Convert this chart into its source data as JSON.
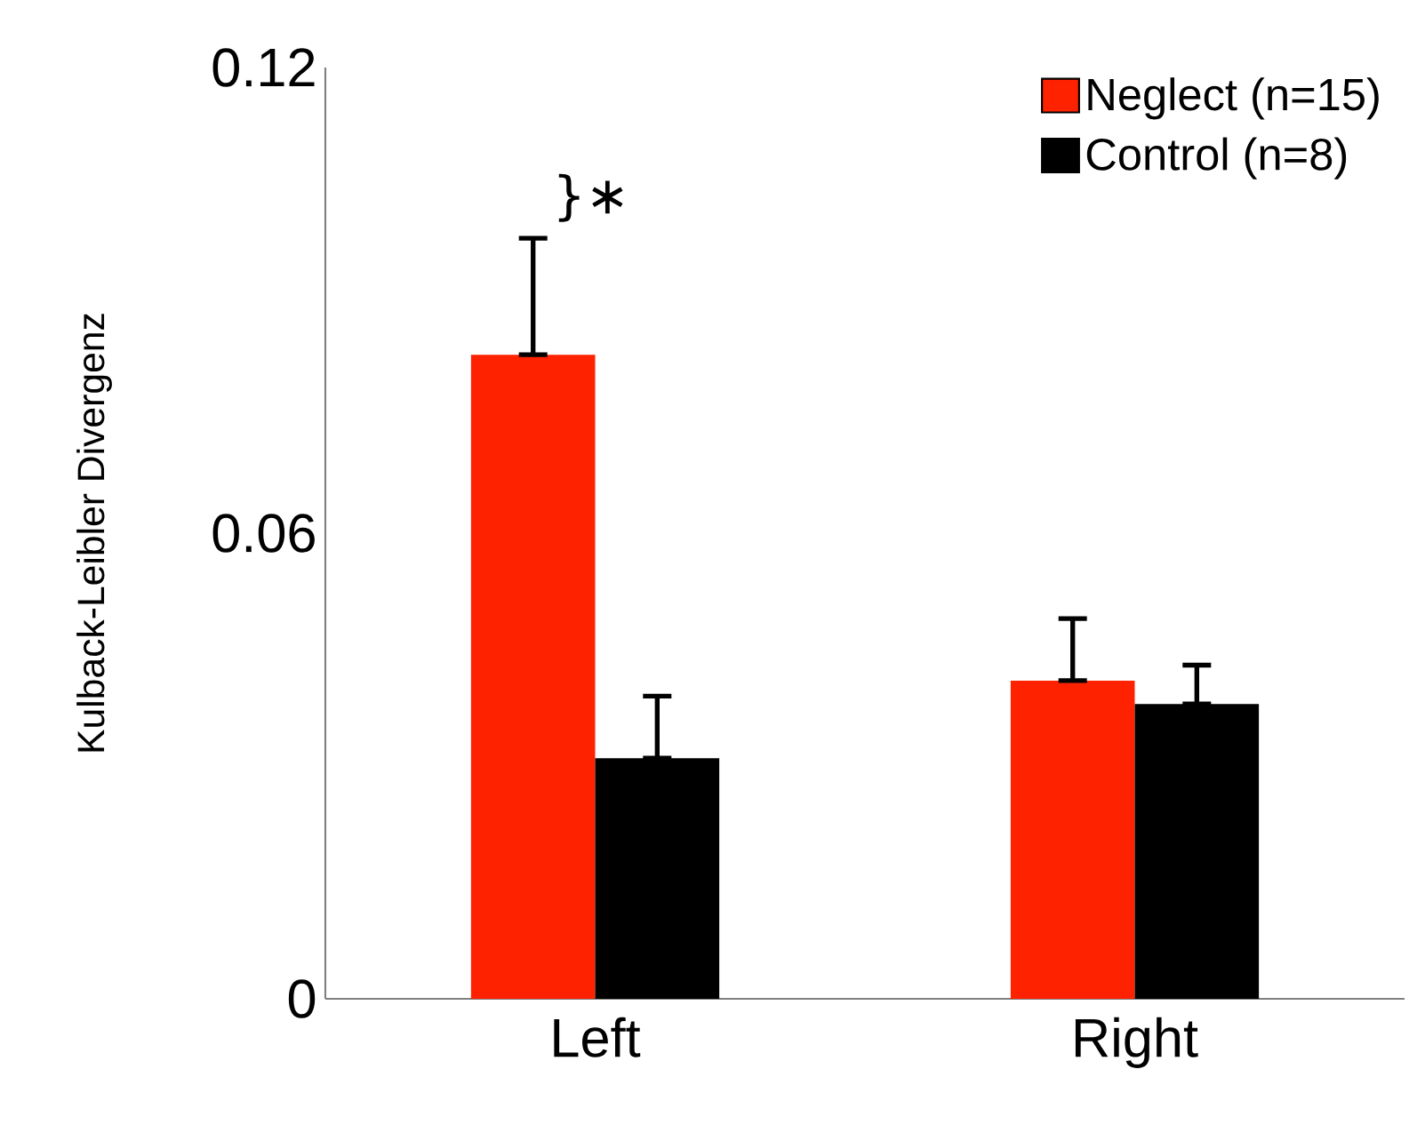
{
  "chart_data": {
    "type": "bar",
    "ylabel": "Kulback-Leibler Divergenz",
    "categories": [
      "Left",
      "Right"
    ],
    "series": [
      {
        "name": "Neglect (n=15)",
        "color": "#ff2200",
        "values": [
          0.083,
          0.041
        ],
        "errors": [
          [
            0.083,
            0.098
          ],
          [
            0.041,
            0.049
          ]
        ]
      },
      {
        "name": "Control (n=8)",
        "color": "#000000",
        "values": [
          0.031,
          0.038
        ],
        "errors": [
          [
            0.031,
            0.039
          ],
          [
            0.038,
            0.043
          ]
        ]
      }
    ],
    "ylim": [
      0,
      0.12
    ],
    "yticks": [
      0,
      0.06,
      0.12
    ],
    "legend": "top right",
    "grid": false,
    "annotations": [
      "}∗"
    ]
  }
}
